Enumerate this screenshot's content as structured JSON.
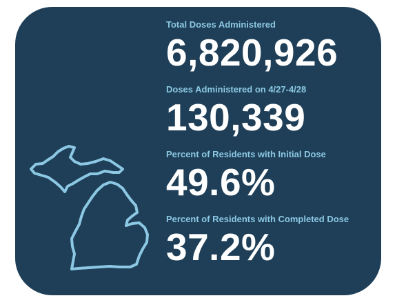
{
  "stats": [
    {
      "label": "Total Doses Administered",
      "value": "6,820,926"
    },
    {
      "label": "Doses Administered on 4/27-4/28",
      "value": "130,339"
    },
    {
      "label": "Percent of Residents with Initial Dose",
      "value": "49.6%"
    },
    {
      "label": "Percent of Residents with Completed Dose",
      "value": "37.2%"
    }
  ],
  "colors": {
    "card_background": "#1e3f57",
    "label_text": "#8cc8e4",
    "value_text": "#ffffff",
    "map_outline": "#8cc8e4"
  },
  "icons": {
    "map": "michigan-outline-icon"
  }
}
